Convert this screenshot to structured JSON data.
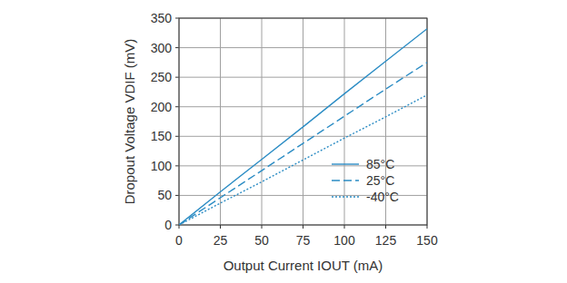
{
  "chart_data": {
    "type": "line",
    "x_label": "Output Current IOUT (mA)",
    "y_label": "Dropout Voltage VDIF (mV)",
    "x": [
      0,
      25,
      50,
      75,
      100,
      125,
      150
    ],
    "series": [
      {
        "name": "85°C",
        "color": "#2b8cc4",
        "line_style": "solid",
        "values": [
          0,
          56,
          111,
          166,
          222,
          277,
          332
        ]
      },
      {
        "name": "25°C",
        "color": "#2b8cc4",
        "line_style": "dashed",
        "values": [
          0,
          46,
          92,
          138,
          184,
          230,
          275
        ]
      },
      {
        "name": "-40°C",
        "color": "#2b8cc4",
        "line_style": "dotted",
        "values": [
          0,
          37,
          73,
          110,
          147,
          183,
          220
        ]
      }
    ],
    "xlim": [
      0,
      150
    ],
    "xticks": [
      0,
      25,
      50,
      75,
      100,
      125,
      150
    ],
    "ylim": [
      0,
      350
    ],
    "yticks": [
      0,
      50,
      100,
      150,
      200,
      250,
      300,
      350
    ],
    "grid": true,
    "legend": "lower right"
  }
}
